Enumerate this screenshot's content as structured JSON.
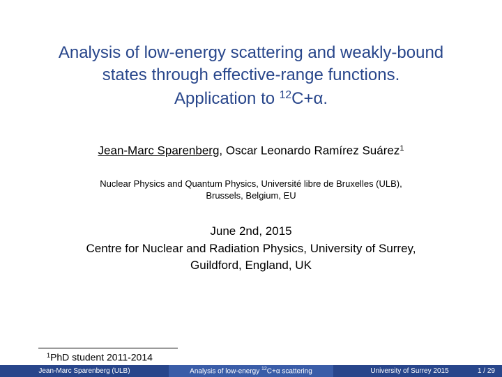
{
  "title": {
    "line1": "Analysis of low-energy scattering and weakly-bound",
    "line2": "states through effective-range functions.",
    "line3_prefix": "Application to ",
    "line3_sup": "12",
    "line3_suffix": "C+α."
  },
  "authors": {
    "main": "Jean-Marc Sparenberg",
    "separator": ",    ",
    "second": "Oscar Leonardo Ramírez Suárez",
    "second_sup": "1"
  },
  "affiliation": {
    "line1": "Nuclear Physics and Quantum Physics, Université libre de Bruxelles (ULB),",
    "line2": "Brussels, Belgium, EU"
  },
  "venue": {
    "date": "June 2nd, 2015",
    "line2": "Centre for Nuclear and Radiation Physics, University of Surrey,",
    "line3": "Guildford, England, UK"
  },
  "footnote": {
    "sup": "1",
    "text": "PhD student 2011-2014"
  },
  "footer": {
    "left": "Jean-Marc Sparenberg (ULB)",
    "mid_prefix": "Analysis of low-energy ",
    "mid_sup": "12",
    "mid_suffix": "C+α scattering",
    "right": "University of Surrey 2015",
    "page": "1 / 29"
  },
  "colors": {
    "title": "#28468b",
    "footer_outer": "#28468b",
    "footer_mid": "#3a5da8",
    "text": "#000000",
    "bg": "#ffffff"
  }
}
